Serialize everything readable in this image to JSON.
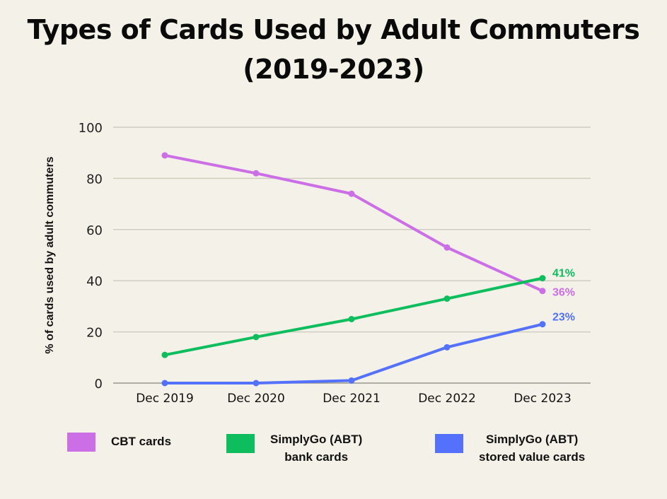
{
  "chart_data": {
    "type": "line",
    "title": "Types of Cards Used by Adult Commuters",
    "subtitle": "(2019-2023)",
    "xlabel": "",
    "ylabel": "% of cards used by adult commuters",
    "categories": [
      "Dec 2019",
      "Dec 2020",
      "Dec 2021",
      "Dec 2022",
      "Dec 2023"
    ],
    "ylim": [
      0,
      100
    ],
    "yticks": [
      0,
      20,
      40,
      60,
      80,
      100
    ],
    "grid": true,
    "legend_position": "bottom",
    "series": [
      {
        "name": "CBT cards",
        "color": "#cc6fe6",
        "values": [
          89,
          82,
          74,
          53,
          36
        ],
        "end_label": "36%"
      },
      {
        "name": "SimplyGo (ABT) bank cards",
        "color": "#0dbd5e",
        "values": [
          11,
          18,
          25,
          33,
          41
        ],
        "end_label": "41%"
      },
      {
        "name": "SimplyGo (ABT) stored value cards",
        "color": "#5371fb",
        "values": [
          0,
          0,
          1,
          14,
          23
        ],
        "end_label": "23%"
      }
    ]
  },
  "legend": [
    {
      "line1": "CBT cards",
      "line2": ""
    },
    {
      "line1": "SimplyGo (ABT)",
      "line2": "bank cards"
    },
    {
      "line1": "SimplyGo (ABT)",
      "line2": "stored value cards"
    }
  ]
}
